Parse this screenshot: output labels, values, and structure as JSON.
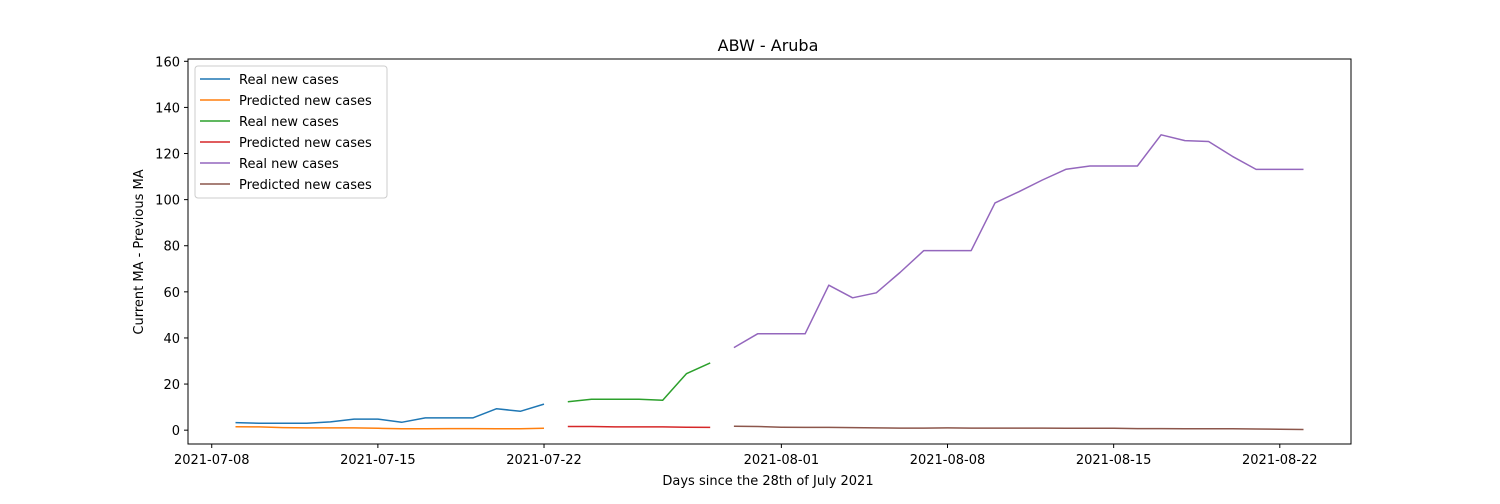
{
  "chart_data": {
    "type": "line",
    "title": "ABW - Aruba",
    "xlabel": "Days since the 28th of July 2021",
    "ylabel": "Current MA - Previous MA",
    "x_ticks": [
      "2021-07-08",
      "2021-07-15",
      "2021-07-22",
      "2021-08-01",
      "2021-08-08",
      "2021-08-15",
      "2021-08-22"
    ],
    "y_ticks": [
      0,
      20,
      40,
      60,
      80,
      100,
      120,
      140,
      160
    ],
    "xlim": [
      "2021-07-07",
      "2021-08-25"
    ],
    "ylim": [
      -6,
      161
    ],
    "grid": false,
    "legend_position": "upper-left",
    "series": [
      {
        "name": "Real new cases",
        "color": "#1f77b4",
        "x": [
          "2021-07-09",
          "2021-07-10",
          "2021-07-11",
          "2021-07-12",
          "2021-07-13",
          "2021-07-14",
          "2021-07-15",
          "2021-07-16",
          "2021-07-17",
          "2021-07-18",
          "2021-07-19",
          "2021-07-20",
          "2021-07-21",
          "2021-07-22"
        ],
        "y": [
          3.3,
          3.0,
          3.0,
          3.0,
          3.6,
          4.8,
          4.8,
          3.4,
          5.3,
          5.3,
          5.3,
          9.3,
          8.2,
          11.3
        ]
      },
      {
        "name": "Predicted new cases",
        "color": "#ff7f0e",
        "x": [
          "2021-07-09",
          "2021-07-10",
          "2021-07-11",
          "2021-07-12",
          "2021-07-13",
          "2021-07-14",
          "2021-07-15",
          "2021-07-16",
          "2021-07-17",
          "2021-07-18",
          "2021-07-19",
          "2021-07-20",
          "2021-07-21",
          "2021-07-22"
        ],
        "y": [
          1.5,
          1.4,
          1.1,
          1.0,
          1.0,
          1.0,
          0.8,
          0.6,
          0.6,
          0.7,
          0.7,
          0.6,
          0.6,
          0.8
        ]
      },
      {
        "name": "Real new cases",
        "color": "#2ca02c",
        "x": [
          "2021-07-23",
          "2021-07-24",
          "2021-07-25",
          "2021-07-26",
          "2021-07-27",
          "2021-07-28",
          "2021-07-29"
        ],
        "y": [
          12.3,
          13.4,
          13.4,
          13.4,
          13.0,
          24.5,
          29.2
        ]
      },
      {
        "name": "Predicted new cases",
        "color": "#d62728",
        "x": [
          "2021-07-23",
          "2021-07-24",
          "2021-07-25",
          "2021-07-26",
          "2021-07-27",
          "2021-07-28",
          "2021-07-29"
        ],
        "y": [
          1.6,
          1.6,
          1.4,
          1.4,
          1.4,
          1.3,
          1.2
        ]
      },
      {
        "name": "Real new cases",
        "color": "#9467bd",
        "x": [
          "2021-07-30",
          "2021-07-31",
          "2021-08-01",
          "2021-08-02",
          "2021-08-03",
          "2021-08-04",
          "2021-08-05",
          "2021-08-06",
          "2021-08-07",
          "2021-08-08",
          "2021-08-09",
          "2021-08-10",
          "2021-08-11",
          "2021-08-12",
          "2021-08-13",
          "2021-08-14",
          "2021-08-15",
          "2021-08-16",
          "2021-08-17",
          "2021-08-18",
          "2021-08-19",
          "2021-08-20",
          "2021-08-21",
          "2021-08-22",
          "2021-08-23"
        ],
        "y": [
          35.8,
          41.8,
          41.8,
          41.8,
          62.9,
          57.4,
          59.6,
          68.4,
          77.9,
          77.9,
          77.9,
          98.6,
          103.4,
          108.5,
          113.2,
          114.6,
          114.6,
          114.6,
          128.1,
          125.6,
          125.2,
          118.8,
          113.1,
          113.1,
          113.1
        ]
      },
      {
        "name": "Predicted new cases",
        "color": "#8c564b",
        "x": [
          "2021-07-30",
          "2021-07-31",
          "2021-08-01",
          "2021-08-02",
          "2021-08-03",
          "2021-08-04",
          "2021-08-05",
          "2021-08-06",
          "2021-08-07",
          "2021-08-08",
          "2021-08-09",
          "2021-08-10",
          "2021-08-11",
          "2021-08-12",
          "2021-08-13",
          "2021-08-14",
          "2021-08-15",
          "2021-08-16",
          "2021-08-17",
          "2021-08-18",
          "2021-08-19",
          "2021-08-20",
          "2021-08-21",
          "2021-08-22",
          "2021-08-23"
        ],
        "y": [
          1.7,
          1.6,
          1.3,
          1.2,
          1.2,
          1.1,
          1.0,
          0.9,
          0.9,
          1.0,
          0.9,
          0.9,
          0.9,
          0.9,
          0.8,
          0.8,
          0.8,
          0.7,
          0.7,
          0.6,
          0.6,
          0.6,
          0.5,
          0.4,
          0.3
        ]
      }
    ]
  }
}
